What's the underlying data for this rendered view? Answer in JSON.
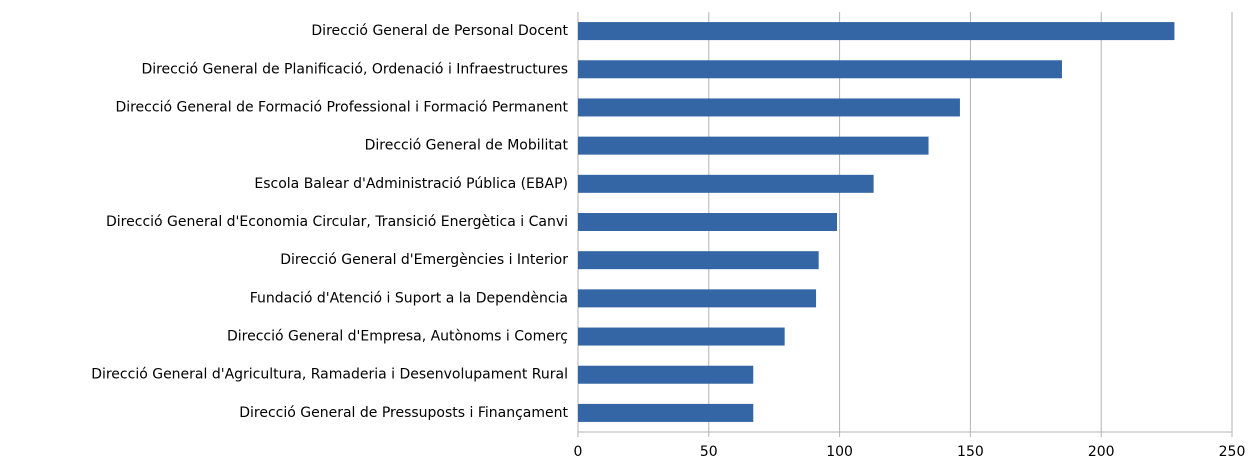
{
  "chart_data": {
    "type": "barh",
    "categories": [
      "Direcció General de Personal Docent",
      "Direcció General de Planificació, Ordenació i Infraestructures",
      "Direcció General de Formació Professional i Formació Permanent",
      "Direcció General de Mobilitat",
      "Escola Balear d'Administració Pública (EBAP)",
      "Direcció General d'Economia Circular, Transició Energètica i Canvi",
      "Direcció General d'Emergències i Interior",
      "Fundació d'Atenció i Suport a la Dependència",
      "Direcció General d'Empresa, Autònoms i Comerç",
      "Direcció General d'Agricultura, Ramaderia i Desenvolupament Rural",
      "Direcció General de Pressuposts i Finançament"
    ],
    "values": [
      228,
      185,
      146,
      134,
      113,
      99,
      92,
      91,
      79,
      67,
      67
    ],
    "color": "#3465a4",
    "xlim": [
      0,
      250
    ],
    "xticks": [
      0,
      50,
      100,
      150,
      200,
      250
    ],
    "grid": true
  }
}
